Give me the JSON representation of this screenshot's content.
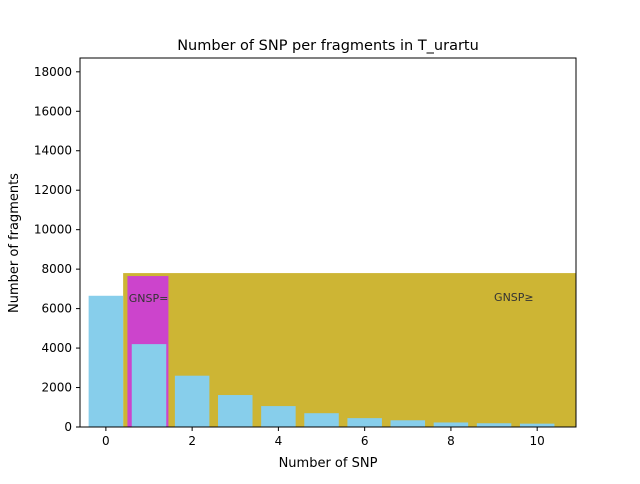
{
  "chart_data": {
    "type": "bar",
    "title": "Number of SNP per fragments in T_urartu",
    "xlabel": "Number of SNP",
    "ylabel": "Number of fragments",
    "xlim": [
      -0.6,
      10.9
    ],
    "ylim": [
      0,
      18700
    ],
    "x_ticks": [
      0,
      2,
      4,
      6,
      8,
      10
    ],
    "y_ticks": [
      0,
      2000,
      4000,
      6000,
      8000,
      10000,
      12000,
      14000,
      16000,
      18000
    ],
    "grid": false,
    "bar_width": 0.8,
    "series": [
      {
        "color": "#87ceeb",
        "x": [
          0,
          1,
          2,
          3,
          4,
          5,
          6,
          7,
          8,
          9,
          10
        ],
        "values": [
          6650,
          4200,
          2600,
          1620,
          1060,
          700,
          450,
          340,
          230,
          190,
          170
        ]
      }
    ],
    "shaded_regions": [
      {
        "label": "GNSP≥",
        "color": "#cdb534",
        "x_start": 0.4,
        "x_end": 10.9,
        "y": 7800,
        "label_x": 9.0,
        "label_y": 6600
      },
      {
        "label": "GNSP=",
        "color": "#cc44cc",
        "x_start": 0.5,
        "x_end": 1.45,
        "y": 7650,
        "label_x": 0.53,
        "label_y": 6550
      }
    ]
  }
}
